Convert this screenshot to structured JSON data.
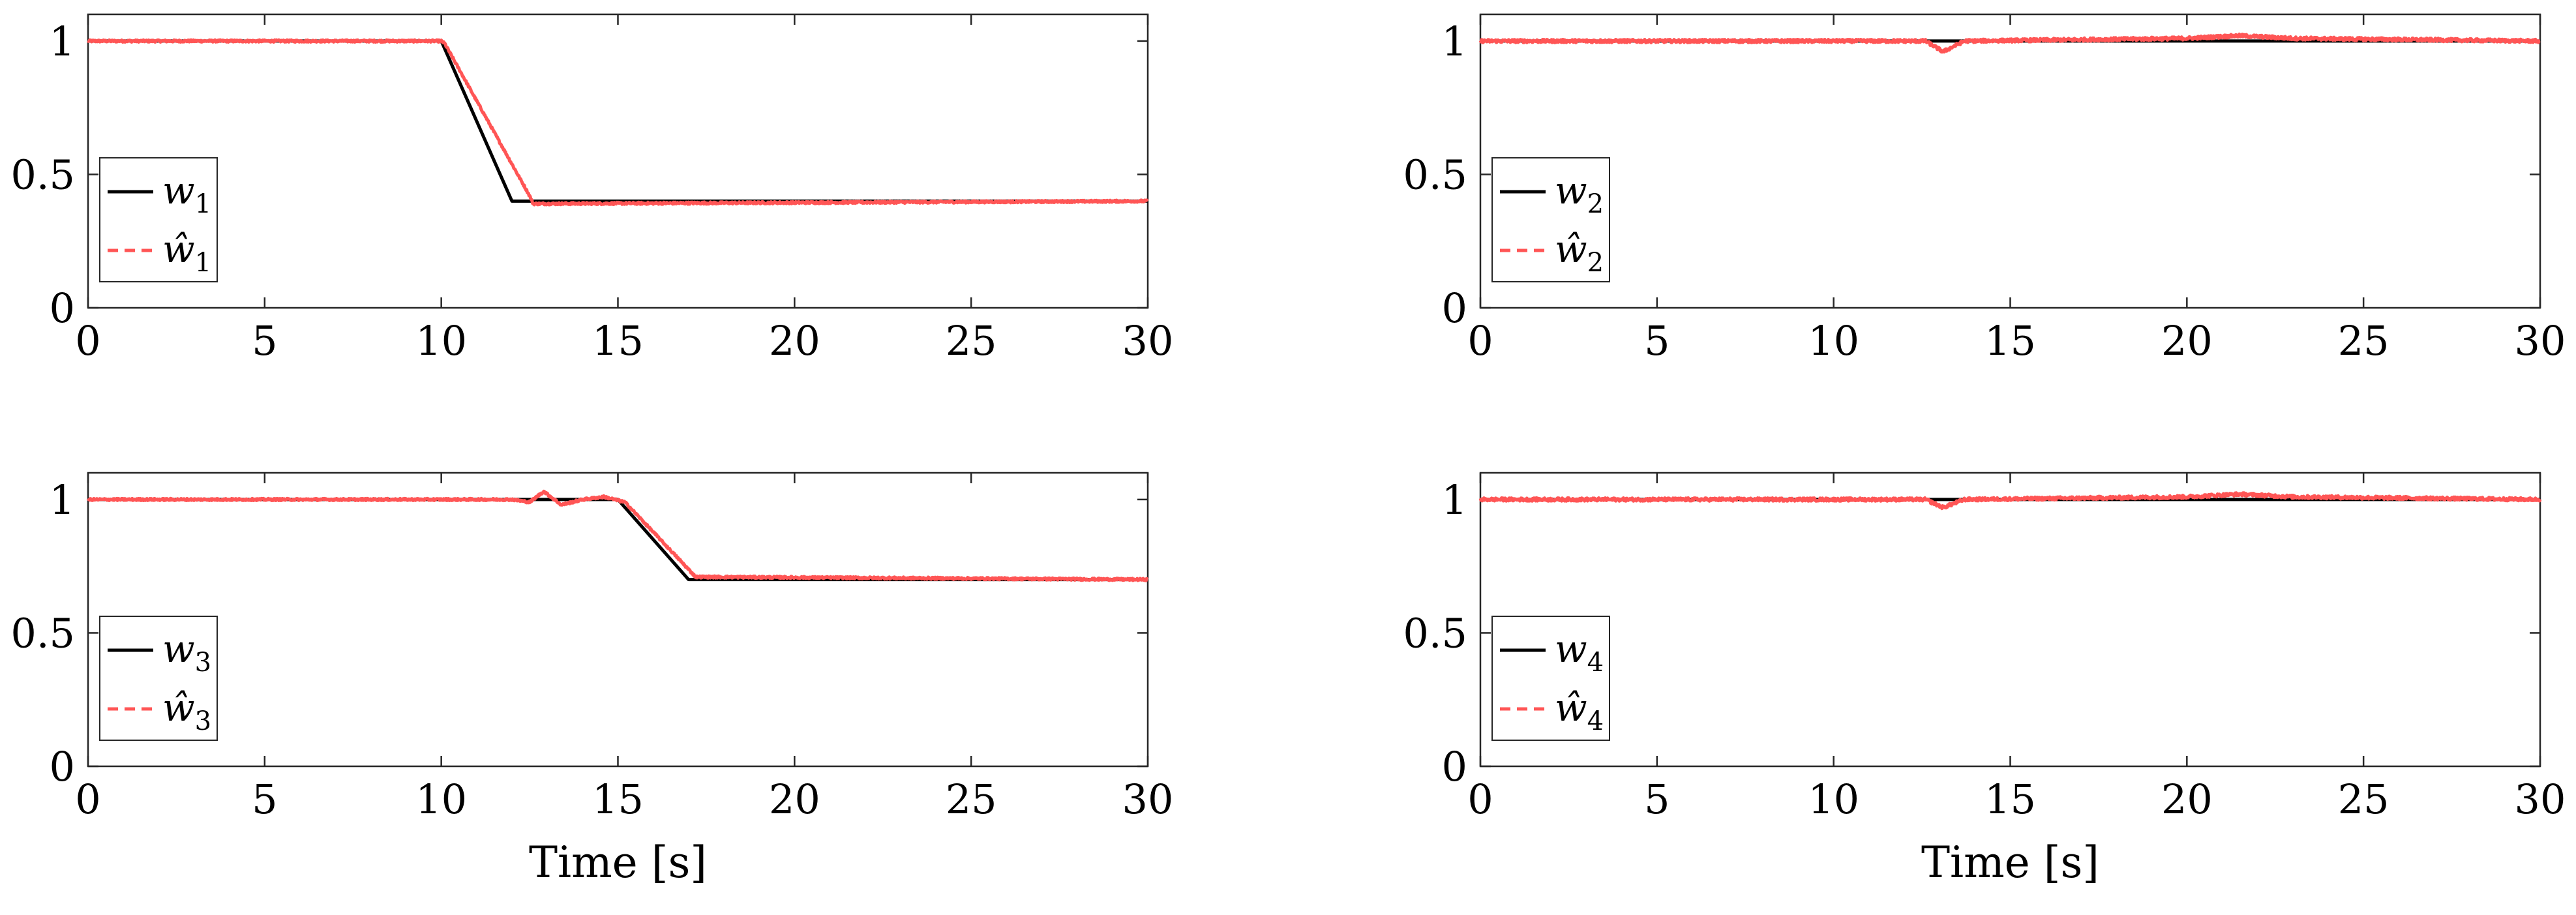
{
  "chart_data": [
    {
      "type": "line",
      "xlim": [
        0,
        30
      ],
      "ylim": [
        0,
        1.1
      ],
      "xticks": [
        "0",
        "5",
        "10",
        "15",
        "20",
        "25",
        "30"
      ],
      "yticks": [
        "0",
        "0.5",
        "1"
      ],
      "xlabel": "",
      "legend": {
        "position": "bottom-left",
        "entries": [
          {
            "symbol": "w",
            "subscript": "1",
            "hat": false
          },
          {
            "symbol": "ŵ",
            "subscript": "1",
            "hat": true
          }
        ]
      },
      "series": [
        {
          "name": "w_1",
          "color": "#000000",
          "style": "solid",
          "x": [
            0,
            10,
            12,
            30
          ],
          "y": [
            1,
            1,
            0.4,
            0.4
          ]
        },
        {
          "name": "ŵ_1",
          "color": "#ff5555",
          "style": "dashed",
          "noise": 0.004,
          "x": [
            0,
            10,
            10.1,
            12.5,
            12.6,
            30
          ],
          "y": [
            1,
            1,
            0.99,
            0.42,
            0.39,
            0.4
          ]
        }
      ]
    },
    {
      "type": "line",
      "xlim": [
        0,
        30
      ],
      "ylim": [
        0,
        1.1
      ],
      "xticks": [
        "0",
        "5",
        "10",
        "15",
        "20",
        "25",
        "30"
      ],
      "yticks": [
        "0",
        "0.5",
        "1"
      ],
      "xlabel": "",
      "legend": {
        "position": "bottom-left",
        "entries": [
          {
            "symbol": "w",
            "subscript": "2",
            "hat": false
          },
          {
            "symbol": "ŵ",
            "subscript": "2",
            "hat": true
          }
        ]
      },
      "series": [
        {
          "name": "w_2",
          "color": "#000000",
          "style": "solid",
          "x": [
            0,
            30
          ],
          "y": [
            1,
            1
          ]
        },
        {
          "name": "ŵ_2",
          "color": "#ff5555",
          "style": "dashed",
          "noise": 0.006,
          "x": [
            0,
            12.6,
            13.1,
            13.7,
            20,
            21.5,
            23,
            30
          ],
          "y": [
            1,
            1,
            0.96,
            1.0,
            1.01,
            1.02,
            1.01,
            1
          ]
        }
      ]
    },
    {
      "type": "line",
      "xlim": [
        0,
        30
      ],
      "ylim": [
        0,
        1.1
      ],
      "xticks": [
        "0",
        "5",
        "10",
        "15",
        "20",
        "25",
        "30"
      ],
      "yticks": [
        "0",
        "0.5",
        "1"
      ],
      "xlabel": "Time [s]",
      "legend": {
        "position": "bottom-left",
        "entries": [
          {
            "symbol": "w",
            "subscript": "3",
            "hat": false
          },
          {
            "symbol": "ŵ",
            "subscript": "3",
            "hat": true
          }
        ]
      },
      "series": [
        {
          "name": "w_3",
          "color": "#000000",
          "style": "solid",
          "x": [
            0,
            15,
            17,
            30
          ],
          "y": [
            1,
            1,
            0.7,
            0.7
          ]
        },
        {
          "name": "ŵ_3",
          "color": "#ff5555",
          "style": "dashed",
          "noise": 0.004,
          "x": [
            0,
            12,
            12.5,
            12.9,
            13.4,
            14,
            14.6,
            15.2,
            17.2,
            30
          ],
          "y": [
            1,
            1,
            0.99,
            1.03,
            0.98,
            1.0,
            1.01,
            0.99,
            0.71,
            0.7
          ]
        }
      ]
    },
    {
      "type": "line",
      "xlim": [
        0,
        30
      ],
      "ylim": [
        0,
        1.1
      ],
      "xticks": [
        "0",
        "5",
        "10",
        "15",
        "20",
        "25",
        "30"
      ],
      "yticks": [
        "0",
        "0.5",
        "1"
      ],
      "xlabel": "Time [s]",
      "legend": {
        "position": "bottom-left",
        "entries": [
          {
            "symbol": "w",
            "subscript": "4",
            "hat": false
          },
          {
            "symbol": "ŵ",
            "subscript": "4",
            "hat": true
          }
        ]
      },
      "series": [
        {
          "name": "w_4",
          "color": "#000000",
          "style": "solid",
          "x": [
            0,
            30
          ],
          "y": [
            1,
            1
          ]
        },
        {
          "name": "ŵ_4",
          "color": "#ff5555",
          "style": "dashed",
          "noise": 0.006,
          "x": [
            0,
            12.6,
            13.1,
            13.7,
            20,
            21.5,
            23,
            30
          ],
          "y": [
            1,
            1,
            0.97,
            1.0,
            1.01,
            1.02,
            1.01,
            1
          ]
        }
      ]
    }
  ]
}
